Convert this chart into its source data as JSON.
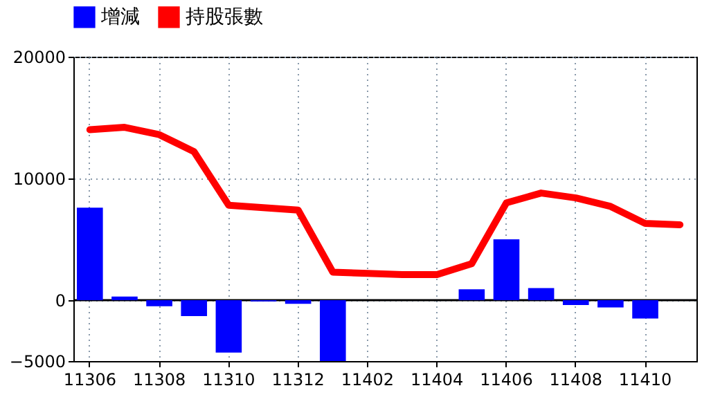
{
  "chart_data": {
    "type": "bar",
    "categories": [
      "11306",
      null,
      "11308",
      null,
      "11310",
      null,
      "11312",
      null,
      "11402",
      null,
      "11404",
      null,
      "11406",
      null,
      "11408",
      null,
      "11410",
      null
    ],
    "series": [
      {
        "name": "增減",
        "color": "#0000ff",
        "values": [
          7600,
          300,
          -500,
          -1300,
          -4300,
          -100,
          -300,
          -5000,
          0,
          0,
          0,
          900,
          5000,
          1000,
          -400,
          -600,
          -1500,
          null
        ]
      },
      {
        "name": "持股張數",
        "type": "line",
        "color": "#ff0000",
        "values": [
          14000,
          14200,
          13600,
          12200,
          7800,
          7600,
          7400,
          2300,
          2200,
          2100,
          2100,
          3000,
          8000,
          8800,
          8400,
          7700,
          6300,
          6200
        ]
      }
    ],
    "ylim": [
      -5000,
      20000
    ],
    "yticks": [
      -5000,
      0,
      10000,
      20000
    ],
    "grid": true,
    "legend": "top",
    "marker": "none",
    "line_style": "solid"
  }
}
